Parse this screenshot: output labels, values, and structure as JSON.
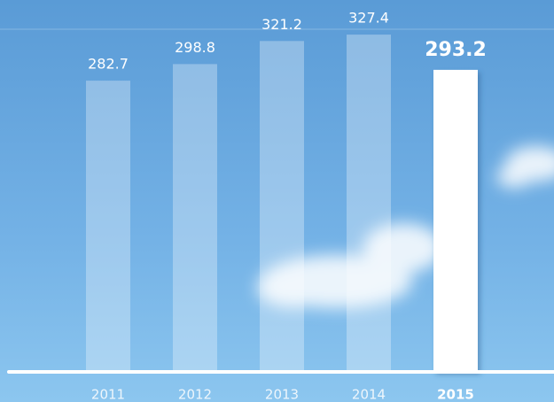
{
  "chart_data": {
    "type": "bar",
    "categories": [
      "2011",
      "2012",
      "2013",
      "2014",
      "2015"
    ],
    "values": [
      282.7,
      298.8,
      321.2,
      327.4,
      293.2
    ],
    "colors": [
      "rgba(255,255,255,0.3)",
      "rgba(255,255,255,0.3)",
      "rgba(255,255,255,0.3)",
      "rgba(255,255,255,0.3)",
      "#ffffff"
    ],
    "ylim": [
      0,
      361
    ]
  }
}
